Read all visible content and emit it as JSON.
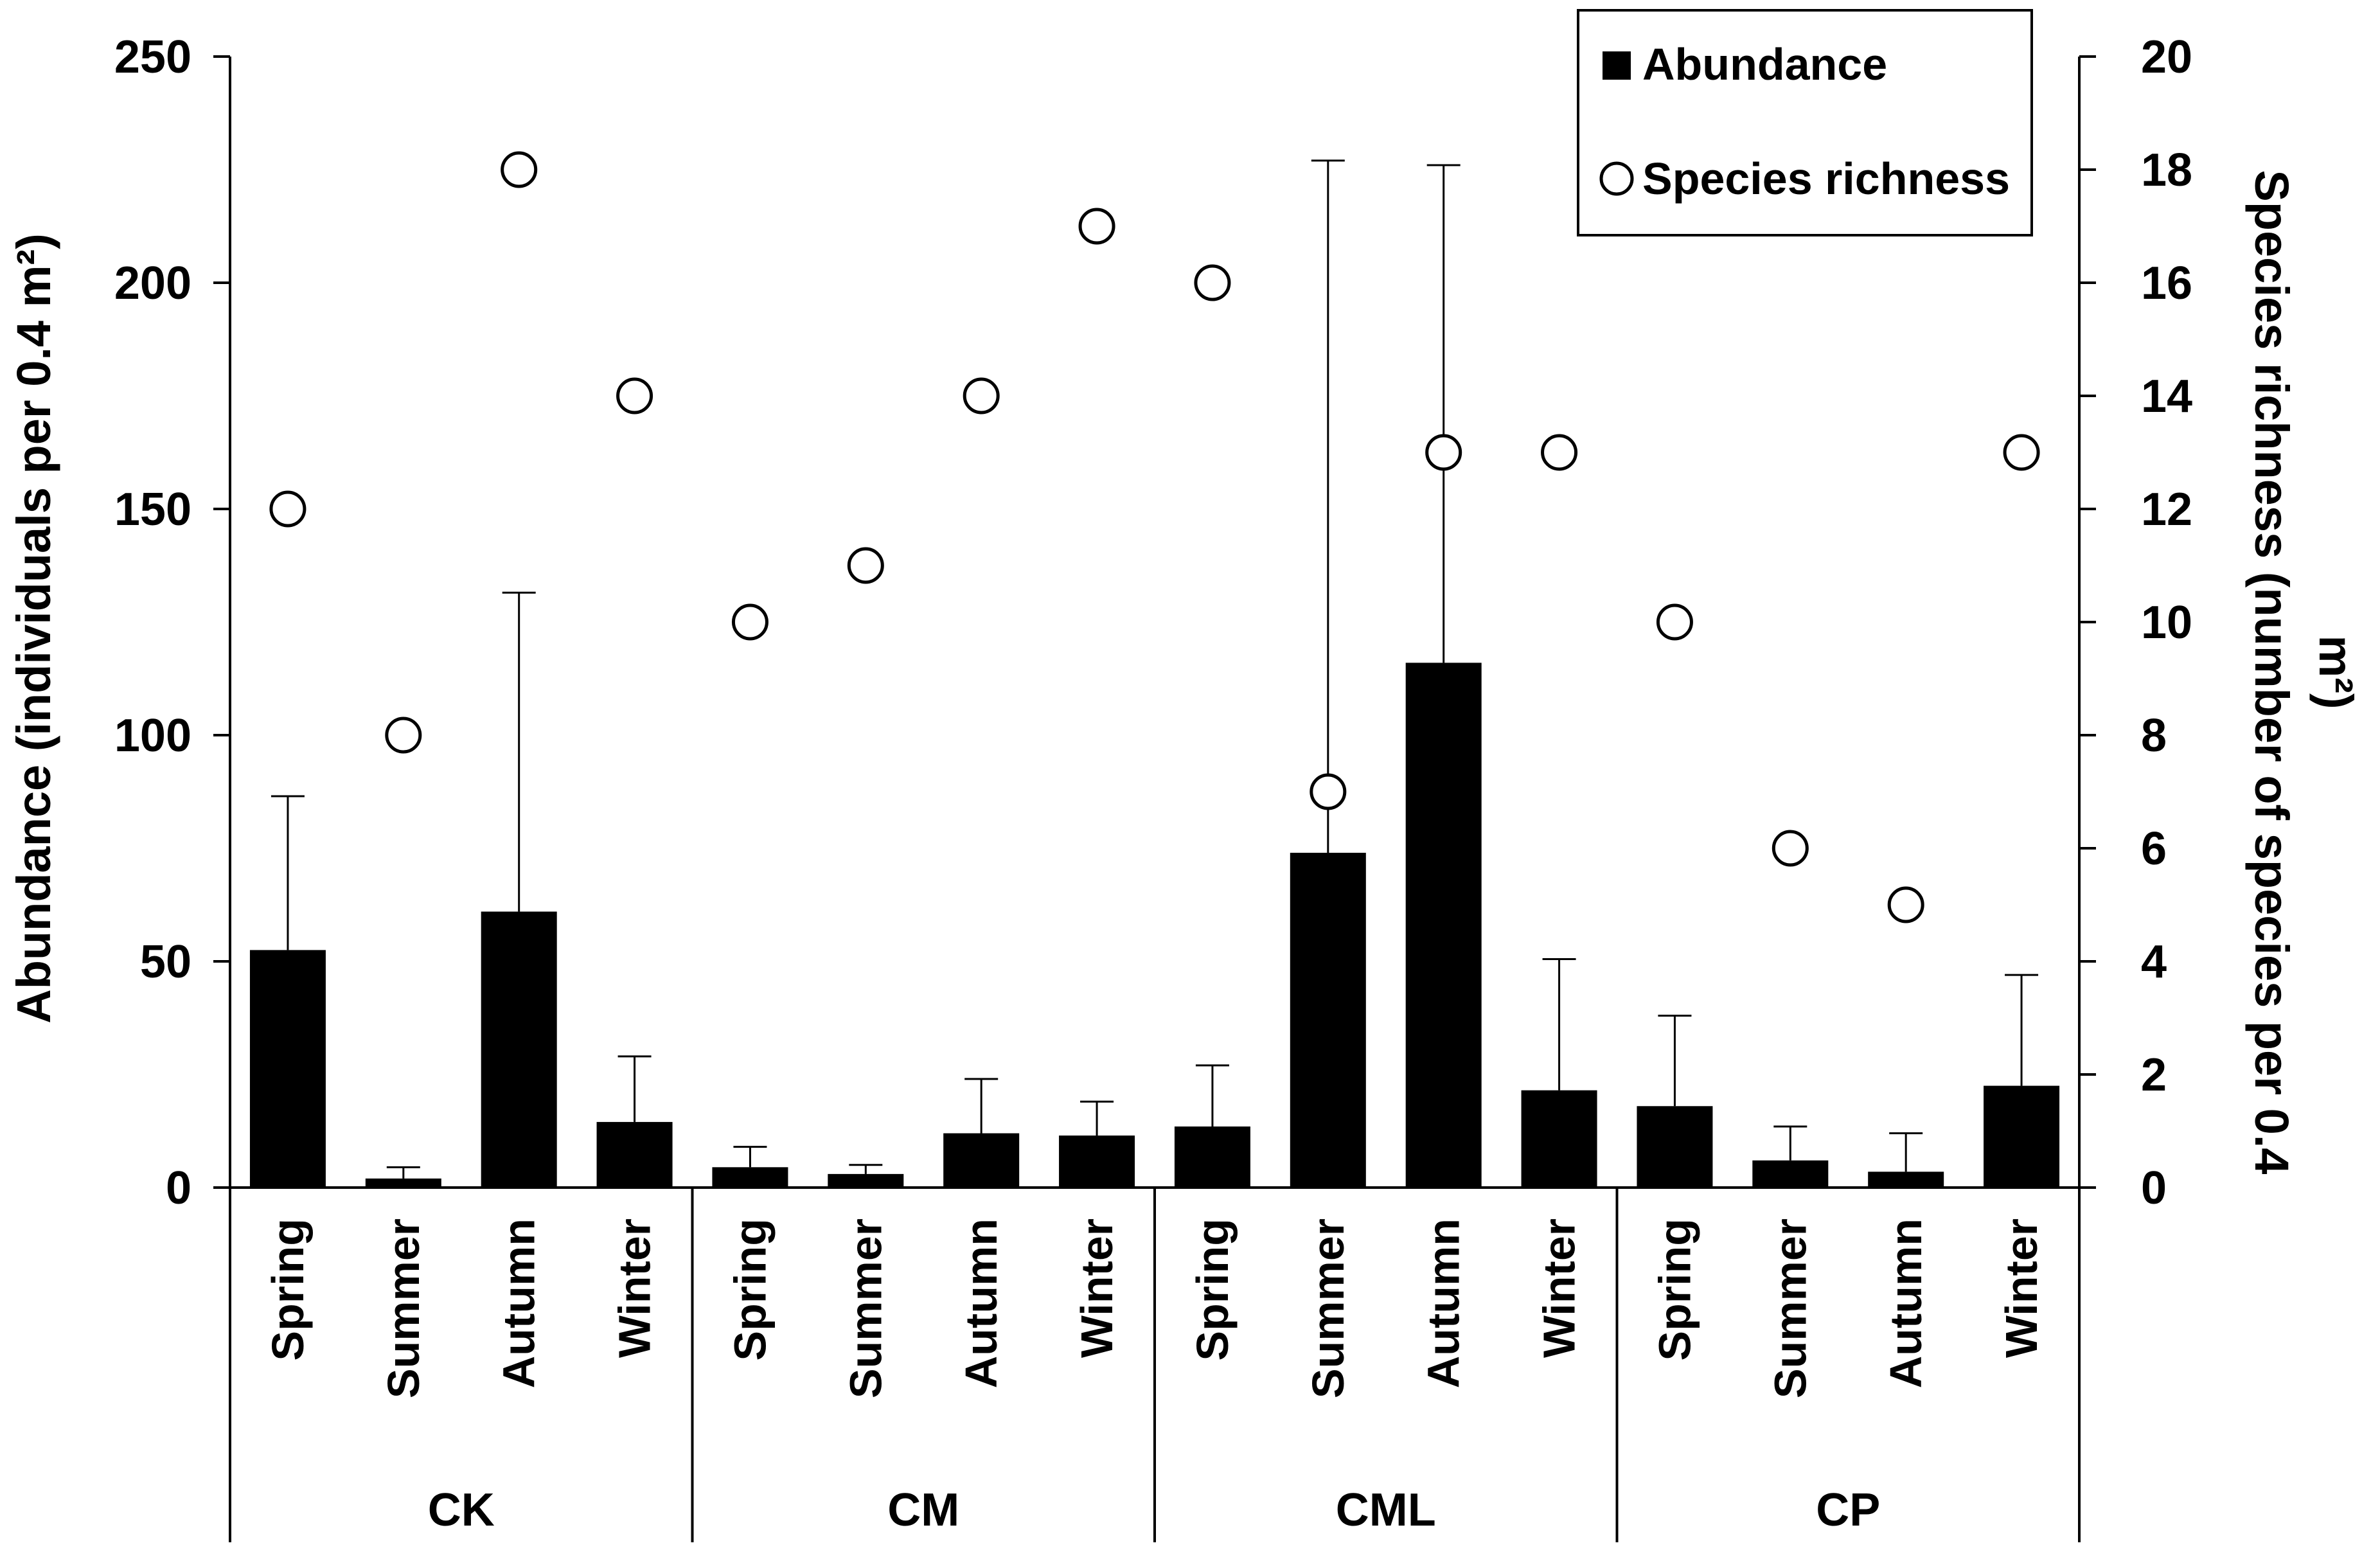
{
  "chart_data": {
    "type": "bar",
    "title": "",
    "groups": [
      "CK",
      "CM",
      "CML",
      "CP"
    ],
    "seasons": [
      "Spring",
      "Summer",
      "Autumn",
      "Winter"
    ],
    "ylabel_left": "Abundance (individuals per 0.4 m²)",
    "ylabel_right": "Species richness (number of species per 0.4 m²)",
    "ylim_left": [
      0,
      250
    ],
    "yticks_left": [
      0,
      50,
      100,
      150,
      200,
      250
    ],
    "ylim_right": [
      0,
      20
    ],
    "yticks_right": [
      0,
      2,
      4,
      6,
      8,
      10,
      12,
      14,
      16,
      18,
      20
    ],
    "legend": {
      "position": "top-right",
      "entries": [
        {
          "label": "Abundance",
          "marker": "filled-square"
        },
        {
          "label": "Species richness",
          "marker": "open-circle"
        }
      ]
    },
    "series": [
      {
        "name": "Abundance",
        "kind": "bar",
        "axis": "left",
        "color": "#000000",
        "values": [
          52.5,
          2,
          61,
          14.5,
          4.5,
          3,
          12,
          11.5,
          13.5,
          74,
          116,
          21.5,
          18,
          6,
          3.5,
          22.5
        ],
        "error_upper": [
          86.5,
          4.5,
          131.5,
          29,
          9,
          5,
          24,
          19,
          27,
          227,
          226,
          50.5,
          38,
          13.5,
          12,
          47
        ]
      },
      {
        "name": "Species richness",
        "kind": "scatter",
        "axis": "right",
        "marker": "open-circle",
        "values": [
          12,
          8,
          18,
          14,
          10,
          11,
          14,
          17,
          16,
          7,
          13,
          13,
          10,
          6,
          5,
          13
        ]
      }
    ]
  }
}
